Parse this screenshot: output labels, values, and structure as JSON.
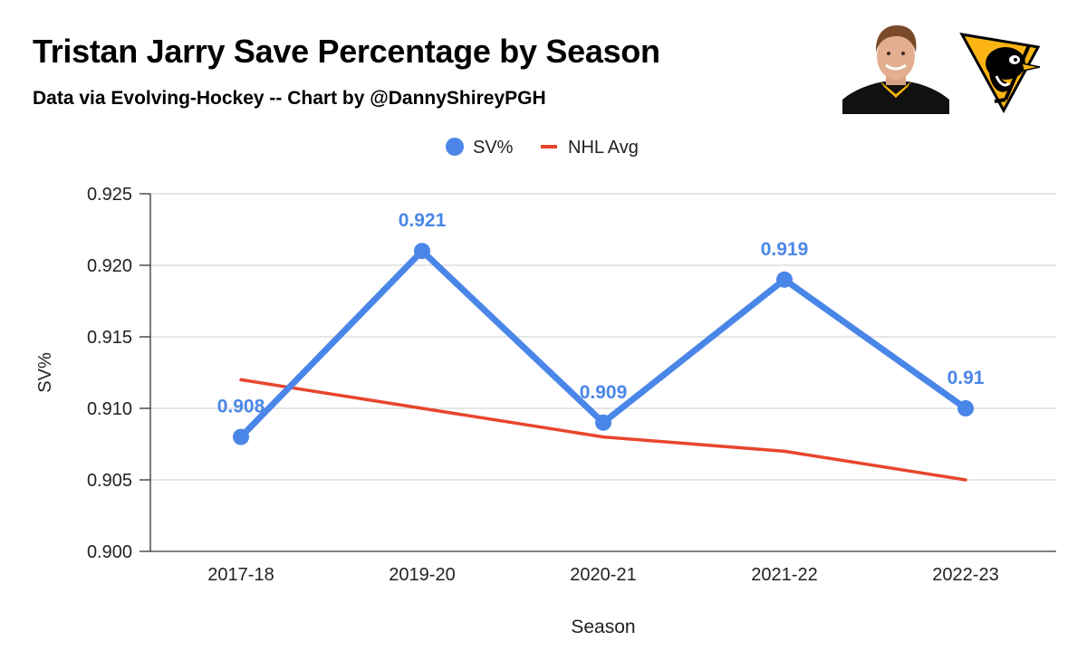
{
  "title": "Tristan Jarry Save Percentage by Season",
  "subtitle": "Data via Evolving-Hockey -- Chart by @DannyShireyPGH",
  "images": {
    "player_photo": "goalie-headshot",
    "team_logo": "penguins-logo"
  },
  "chart_data": {
    "type": "line",
    "categories": [
      "2017-18",
      "2019-20",
      "2020-21",
      "2021-22",
      "2022-23"
    ],
    "series": [
      {
        "name": "SV%",
        "values": [
          0.908,
          0.921,
          0.909,
          0.919,
          0.91
        ],
        "color": "#4a86e8",
        "markers": true,
        "data_labels": [
          "0.908",
          "0.921",
          "0.909",
          "0.919",
          "0.91"
        ]
      },
      {
        "name": "NHL Avg",
        "values": [
          0.912,
          0.91,
          0.908,
          0.907,
          0.905
        ],
        "color": "#e8452c",
        "markers": false
      }
    ],
    "xlabel": "Season",
    "ylabel": "SV%",
    "ylim": [
      0.9,
      0.925
    ],
    "yticks": [
      "0.900",
      "0.905",
      "0.910",
      "0.915",
      "0.920",
      "0.925"
    ],
    "grid": true,
    "legend": "top-center"
  }
}
